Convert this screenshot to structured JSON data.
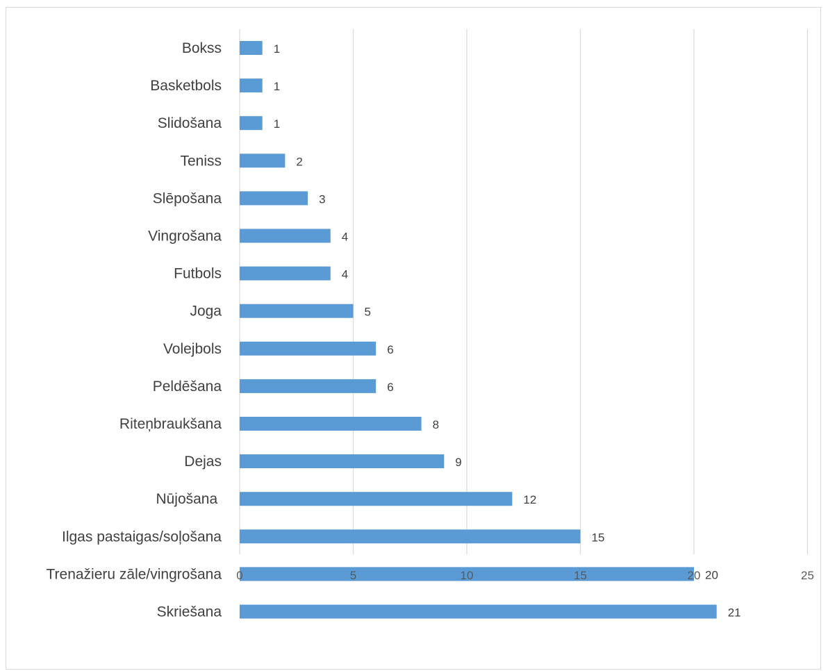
{
  "chart_data": {
    "type": "bar",
    "orientation": "horizontal",
    "categories": [
      "Bokss",
      "Basketbols",
      "Slidošana",
      "Teniss",
      "Slēpošana",
      "Vingrošana",
      "Futbols",
      "Joga",
      "Volejbols",
      "Peldēšana",
      "Riteņbraukšana",
      "Dejas",
      "Nūjošana ",
      "Ilgas pastaigas/soļošana",
      "Trenažieru zāle/vingrošana",
      "Skriešana"
    ],
    "values": [
      1,
      1,
      1,
      2,
      3,
      4,
      4,
      5,
      6,
      6,
      8,
      9,
      12,
      15,
      20,
      21
    ],
    "title": "",
    "xlabel": "",
    "ylabel": "",
    "xlim": [
      0,
      25
    ],
    "x_ticks": [
      0,
      5,
      10,
      15,
      20,
      25
    ],
    "grid": "vertical",
    "legend": "none",
    "data_labels": true,
    "bar_color": "#5b9bd5",
    "grid_color": "#d9d9d9",
    "text_color": "#404040"
  }
}
